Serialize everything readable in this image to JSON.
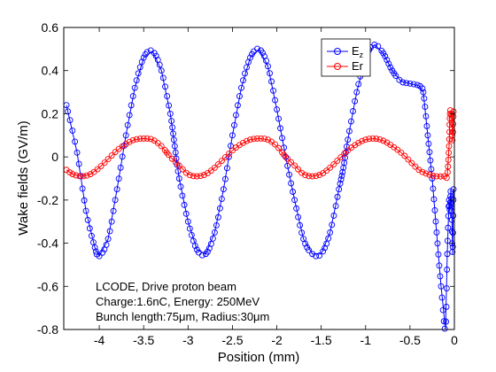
{
  "chart_data": {
    "type": "line",
    "title": "",
    "xlabel": "Position (mm)",
    "ylabel": "Wake fields (GV/m)",
    "xlim": [
      -4.4,
      0.0
    ],
    "ylim": [
      -0.8,
      0.6
    ],
    "xticks": [
      -4,
      -3.5,
      -3,
      -2.5,
      -2,
      -1.5,
      -1,
      -0.5,
      0
    ],
    "xtick_labels": [
      "-4",
      "-3.5",
      "-3",
      "-2.5",
      "-2",
      "-1.5",
      "-1",
      "-0.5",
      "0"
    ],
    "yticks": [
      -0.8,
      -0.6,
      -0.4,
      -0.2,
      0,
      0.2,
      0.4,
      0.6
    ],
    "ytick_labels": [
      "-0.8",
      "-0.6",
      "-0.4",
      "-0.2",
      "0",
      "0.2",
      "0.4",
      "0.6"
    ],
    "grid": false,
    "legend_position": "top-right",
    "marker": "open circle",
    "annotations": [
      "LCODE, Drive proton beam",
      "Charge:1.6nC, Energy: 250MeV",
      "Bunch length:75μm, Radius:30μm"
    ],
    "series": [
      {
        "name": "Ez",
        "name_main": "E",
        "name_sub": "z",
        "color": "#0000ff",
        "x": [
          -4.37,
          -4.25,
          -4.15,
          -4.05,
          -4.0,
          -3.9,
          -3.8,
          -3.7,
          -3.6,
          -3.5,
          -3.4,
          -3.3,
          -3.2,
          -3.15,
          -3.1,
          -3.0,
          -2.9,
          -2.8,
          -2.7,
          -2.6,
          -2.5,
          -2.4,
          -2.3,
          -2.2,
          -2.1,
          -2.0,
          -1.9,
          -1.8,
          -1.7,
          -1.6,
          -1.5,
          -1.4,
          -1.3,
          -1.25,
          -1.2,
          -1.1,
          -1.0,
          -0.9,
          -0.8,
          -0.7,
          -0.6,
          -0.5,
          -0.4,
          -0.35,
          -0.3,
          -0.25,
          -0.2,
          -0.15,
          -0.1,
          -0.08,
          -0.06,
          -0.05,
          -0.04,
          -0.03,
          -0.02,
          -0.01
        ],
        "y": [
          0.24,
          0.02,
          -0.25,
          -0.42,
          -0.46,
          -0.38,
          -0.15,
          0.1,
          0.32,
          0.46,
          0.49,
          0.4,
          0.2,
          0.05,
          -0.1,
          -0.3,
          -0.43,
          -0.45,
          -0.35,
          -0.15,
          0.1,
          0.32,
          0.46,
          0.5,
          0.42,
          0.22,
          0.0,
          -0.2,
          -0.38,
          -0.45,
          -0.45,
          -0.35,
          -0.15,
          -0.05,
          0.08,
          0.3,
          0.46,
          0.52,
          0.48,
          0.4,
          0.35,
          0.34,
          0.33,
          0.3,
          0.1,
          -0.1,
          -0.35,
          -0.6,
          -0.8,
          -0.45,
          -0.2,
          -0.25,
          -0.15,
          -0.25,
          -0.45,
          -0.15
        ]
      },
      {
        "name": "Er",
        "color": "#ff0000",
        "x": [
          -4.37,
          -4.3,
          -4.2,
          -4.1,
          -4.0,
          -3.9,
          -3.8,
          -3.7,
          -3.6,
          -3.5,
          -3.4,
          -3.3,
          -3.2,
          -3.1,
          -3.0,
          -2.9,
          -2.8,
          -2.7,
          -2.6,
          -2.5,
          -2.4,
          -2.3,
          -2.2,
          -2.1,
          -2.0,
          -1.9,
          -1.8,
          -1.7,
          -1.6,
          -1.5,
          -1.4,
          -1.3,
          -1.2,
          -1.1,
          -1.0,
          -0.9,
          -0.8,
          -0.7,
          -0.6,
          -0.5,
          -0.4,
          -0.3,
          -0.2,
          -0.1,
          -0.08,
          -0.06,
          -0.05,
          -0.04,
          -0.03,
          -0.02,
          -0.01
        ],
        "y": [
          -0.06,
          -0.08,
          -0.09,
          -0.08,
          -0.05,
          -0.01,
          0.03,
          0.06,
          0.08,
          0.085,
          0.08,
          0.05,
          0.0,
          -0.04,
          -0.08,
          -0.09,
          -0.08,
          -0.05,
          -0.01,
          0.03,
          0.06,
          0.08,
          0.085,
          0.08,
          0.05,
          0.0,
          -0.04,
          -0.08,
          -0.09,
          -0.08,
          -0.05,
          -0.01,
          0.03,
          0.06,
          0.08,
          0.085,
          0.075,
          0.05,
          0.02,
          -0.02,
          -0.06,
          -0.08,
          -0.09,
          -0.09,
          -0.09,
          0.05,
          0.2,
          0.21,
          0.18,
          0.07,
          0.21
        ]
      }
    ]
  }
}
